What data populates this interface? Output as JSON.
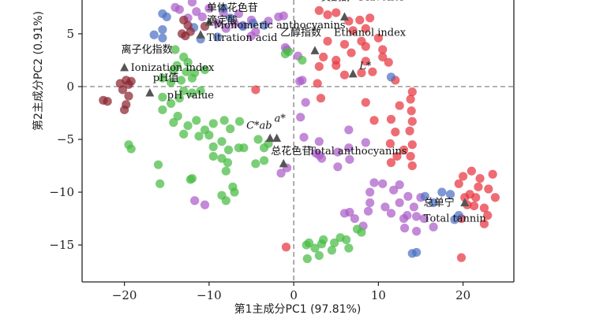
{
  "chart_data": {
    "type": "scatter",
    "xlabel": "第1主成分PC1 (97.81%)",
    "ylabel": "第2主成分PC2 (0.91%)",
    "xlim": [
      -25,
      26
    ],
    "ylim": [
      -18.5,
      8.2
    ],
    "x_ticks": [
      -20,
      -10,
      0,
      10,
      20
    ],
    "y_ticks": [
      5,
      0,
      -5,
      -10,
      -15
    ],
    "reference_lines": {
      "x": 0,
      "y": 0,
      "style": "dashed"
    },
    "series": [
      {
        "color": "#e8343e",
        "points": [
          [
            3,
            7.2
          ],
          [
            5,
            7
          ],
          [
            6.5,
            6.2
          ],
          [
            4,
            6.8
          ],
          [
            7.8,
            6.3
          ],
          [
            9,
            6.5
          ],
          [
            8.5,
            5.5
          ],
          [
            7,
            5.3
          ],
          [
            8,
            4.3
          ],
          [
            6,
            4
          ],
          [
            8.5,
            3.8
          ],
          [
            10,
            4.6
          ],
          [
            10.5,
            3.5
          ],
          [
            4,
            4.3
          ],
          [
            3.5,
            2.8
          ],
          [
            5,
            2.5
          ],
          [
            6.8,
            3.2
          ],
          [
            8.5,
            2.4
          ],
          [
            10.5,
            2.8
          ],
          [
            11.2,
            2.3
          ],
          [
            3,
            1.9
          ],
          [
            5,
            2
          ],
          [
            6,
            1.1
          ],
          [
            8,
            1.3
          ],
          [
            9.3,
            1.4
          ],
          [
            12,
            0.6
          ],
          [
            2.8,
            0.3
          ],
          [
            3.2,
            -1.1
          ],
          [
            14,
            -0.5
          ],
          [
            13.8,
            -1.2
          ],
          [
            12.5,
            -1.8
          ],
          [
            8.5,
            -1.5
          ],
          [
            13.9,
            -2.3
          ],
          [
            14,
            -3.3
          ],
          [
            13.7,
            -4.2
          ],
          [
            11.5,
            -3.1
          ],
          [
            12,
            -4.3
          ],
          [
            14,
            -5.5
          ],
          [
            13,
            -6
          ],
          [
            12.2,
            -6.6
          ],
          [
            11.4,
            -5.4
          ],
          [
            11.5,
            -7.2
          ],
          [
            13.8,
            -6.6
          ],
          [
            14,
            -7.5
          ],
          [
            9.5,
            -3.2
          ],
          [
            21,
            -8
          ],
          [
            20,
            -8.5
          ],
          [
            22,
            -8.7
          ],
          [
            23.5,
            -8.3
          ],
          [
            19.5,
            -9.2
          ],
          [
            21.8,
            -9.5
          ],
          [
            23,
            -9.7
          ],
          [
            21.5,
            -10.5
          ],
          [
            20.5,
            -11.2
          ],
          [
            22.5,
            -11.5
          ],
          [
            23.8,
            -10.5
          ],
          [
            20.8,
            -10.2
          ],
          [
            22.9,
            -12.2
          ],
          [
            22.5,
            -13
          ],
          [
            19.8,
            -12.5
          ],
          [
            20.2,
            -10.5
          ],
          [
            -4.5,
            -0.3
          ],
          [
            -0.9,
            -15.2
          ],
          [
            19.8,
            -16.2
          ],
          [
            21.3,
            -11.3
          ]
        ]
      },
      {
        "color": "#ab5dc7",
        "points": [
          [
            -12,
            8
          ],
          [
            -14,
            7.5
          ],
          [
            -13.5,
            7.3
          ],
          [
            -10,
            7.4
          ],
          [
            -11.5,
            7.1
          ],
          [
            -10.8,
            6.6
          ],
          [
            -12.5,
            6.5
          ],
          [
            -8.3,
            7
          ],
          [
            -9,
            6
          ],
          [
            -7,
            6
          ],
          [
            -6,
            5.8
          ],
          [
            -5,
            6.3
          ],
          [
            -3,
            6.2
          ],
          [
            -1.2,
            6.7
          ],
          [
            -1.8,
            6.6
          ],
          [
            -6.5,
            6.9
          ],
          [
            -4.5,
            5.2
          ],
          [
            -8,
            5.5
          ],
          [
            -5,
            4.8
          ],
          [
            -1,
            3.7
          ],
          [
            -0.8,
            3.5
          ],
          [
            0.5,
            2.9
          ],
          [
            0.7,
            0.5
          ],
          [
            1,
            0.6
          ],
          [
            1.4,
            -1.5
          ],
          [
            0.8,
            -2.9
          ],
          [
            1.2,
            -4.8
          ],
          [
            3,
            -5.2
          ],
          [
            2.6,
            -6.3
          ],
          [
            3.3,
            -6.8
          ],
          [
            5.2,
            -6.2
          ],
          [
            6.5,
            -5.8
          ],
          [
            8.5,
            -5.3
          ],
          [
            6.6,
            -6.9
          ],
          [
            5.2,
            -7.6
          ],
          [
            3,
            -6.5
          ],
          [
            6.5,
            -4.1
          ],
          [
            -0.8,
            -7.7
          ],
          [
            -1.5,
            -8.2
          ],
          [
            9.5,
            -9.1
          ],
          [
            10.5,
            -9.2
          ],
          [
            11.8,
            -9.8
          ],
          [
            12.5,
            -9.3
          ],
          [
            13.5,
            -10.4
          ],
          [
            12.5,
            -11
          ],
          [
            14.2,
            -11.4
          ],
          [
            9,
            -10
          ],
          [
            8.8,
            -11.8
          ],
          [
            8.2,
            -13.2
          ],
          [
            7.2,
            -12.5
          ],
          [
            6.6,
            -11.9
          ],
          [
            6,
            -12
          ],
          [
            11.5,
            -12
          ],
          [
            13,
            -12.5
          ],
          [
            14.5,
            -12.3
          ],
          [
            15.4,
            -12.5
          ],
          [
            13.1,
            -13.4
          ],
          [
            14.5,
            -13.7
          ],
          [
            15,
            -10.5
          ],
          [
            -10.5,
            -11.2
          ],
          [
            -11.7,
            -10.8
          ],
          [
            9,
            -11
          ],
          [
            10.8,
            -11.4
          ],
          [
            13.4,
            -12.2
          ],
          [
            16.5,
            -13.3
          ]
        ]
      },
      {
        "color": "#4c70c4",
        "points": [
          [
            -15.5,
            6.9
          ],
          [
            -15,
            6.6
          ],
          [
            -8.3,
            7.4
          ],
          [
            -7.5,
            6.5
          ],
          [
            -6,
            5.7
          ],
          [
            -4.8,
            6
          ],
          [
            -3.5,
            5.8
          ],
          [
            -11.8,
            5.6
          ],
          [
            -15.5,
            5.4
          ],
          [
            -15.5,
            4.6
          ],
          [
            -16.5,
            4.9
          ],
          [
            -11,
            4.5
          ],
          [
            -9,
            4.7
          ],
          [
            11.5,
            0.9
          ],
          [
            15.5,
            -10.4
          ],
          [
            16.5,
            -11
          ],
          [
            17.5,
            -10
          ],
          [
            18.5,
            -10.2
          ],
          [
            19,
            -12.6
          ],
          [
            19.5,
            -12.2
          ],
          [
            14,
            -15.8
          ],
          [
            14.5,
            -15.7
          ]
        ]
      },
      {
        "color": "#48bb44",
        "points": [
          [
            -14,
            3.5
          ],
          [
            -13,
            2.8
          ],
          [
            -12.5,
            2.3
          ],
          [
            -13.8,
            2
          ],
          [
            -12.7,
            1.4
          ],
          [
            -11.7,
            1.3
          ],
          [
            -10.5,
            1.6
          ],
          [
            -14.2,
            1.5
          ],
          [
            -15.5,
            0.8
          ],
          [
            -14.5,
            0.4
          ],
          [
            -13.3,
            0.6
          ],
          [
            -12,
            0.8
          ],
          [
            -13,
            -0.4
          ],
          [
            -12,
            -0.6
          ],
          [
            -11,
            -0.4
          ],
          [
            -15.5,
            -1
          ],
          [
            -14.5,
            -1.6
          ],
          [
            -13.5,
            -1.1
          ],
          [
            -15.5,
            -2.2
          ],
          [
            -13.7,
            -2.8
          ],
          [
            -14.2,
            -3.4
          ],
          [
            -11.5,
            -3.2
          ],
          [
            -12.5,
            -3.7
          ],
          [
            -9.5,
            -3.5
          ],
          [
            -10.5,
            -4.1
          ],
          [
            -8.2,
            -3.2
          ],
          [
            -7.5,
            -4
          ],
          [
            -6.4,
            -3.3
          ],
          [
            -11.2,
            -4.7
          ],
          [
            -10,
            -4.6
          ],
          [
            -9.5,
            -5.7
          ],
          [
            -8.5,
            -5.2
          ],
          [
            -9.5,
            -6.6
          ],
          [
            -7.8,
            -7.2
          ],
          [
            -8.5,
            -6.8
          ],
          [
            -7.7,
            -6
          ],
          [
            -6.5,
            -5.8
          ],
          [
            -8,
            -8
          ],
          [
            -7.2,
            -9.5
          ],
          [
            -7,
            -10
          ],
          [
            -12,
            -8.7
          ],
          [
            -12.2,
            -8.8
          ],
          [
            -16,
            -7.4
          ],
          [
            -13,
            -4.5
          ],
          [
            -19.5,
            -5.5
          ],
          [
            -19.2,
            -5.9
          ],
          [
            -15.8,
            -9.2
          ],
          [
            -8.5,
            -10.3
          ],
          [
            -8,
            -10.8
          ],
          [
            -5.9,
            -5.8
          ],
          [
            -3.5,
            -5.8
          ],
          [
            -3,
            -5.4
          ],
          [
            -4.5,
            -7.3
          ],
          [
            -3.5,
            -7
          ],
          [
            -1,
            3.1
          ],
          [
            -0.6,
            3.3
          ],
          [
            1,
            2.5
          ],
          [
            1.8,
            -14.8
          ],
          [
            2.5,
            -15.3
          ],
          [
            3.3,
            -14.9
          ],
          [
            1.6,
            -16.3
          ],
          [
            4.5,
            -15.5
          ],
          [
            6.2,
            -14.5
          ],
          [
            5.5,
            -14.3
          ],
          [
            8,
            -13.8
          ],
          [
            3,
            -16
          ],
          [
            6.5,
            -15.3
          ],
          [
            4.8,
            -14.8
          ],
          [
            7.5,
            -13.5
          ],
          [
            3.5,
            -14.5
          ],
          [
            -4.2,
            -5
          ],
          [
            1.5,
            -15
          ]
        ]
      },
      {
        "color": "#8a2631",
        "points": [
          [
            -13,
            6.3
          ],
          [
            -12.5,
            5.8
          ],
          [
            -13.2,
            5
          ],
          [
            -12.2,
            5.2
          ],
          [
            -10.5,
            5.7
          ],
          [
            -12.8,
            4.8
          ],
          [
            -20.5,
            0.3
          ],
          [
            -19.8,
            0.6
          ],
          [
            -19.5,
            0.2
          ],
          [
            -19.2,
            0.5
          ],
          [
            -20.2,
            -0.3
          ],
          [
            -19.5,
            -0.9
          ],
          [
            -19.8,
            -1.7
          ],
          [
            -22,
            -1.4
          ],
          [
            -22.5,
            -1.3
          ],
          [
            -20,
            -2.2
          ]
        ]
      }
    ],
    "variables": [
      {
        "cn": "黄酮醇",
        "en": "Flavonol",
        "x": 6,
        "y": 6.6
      },
      {
        "cn": "单体花色苷",
        "en": "Monomeric anthocyanins",
        "x": -10,
        "y": 6.1
      },
      {
        "cn": "滴定酸",
        "en": "Titration acid",
        "x": -11,
        "y": 4.9
      },
      {
        "cn": "乙醇指数",
        "en": "Ethanol index",
        "x": 2.5,
        "y": 3.4
      },
      {
        "cn": "离子化指数",
        "en": "Ionization index",
        "x": -20,
        "y": 1.8
      },
      {
        "label": "L*",
        "x": 7,
        "y": 1.2
      },
      {
        "cn": "pH值",
        "en": "pH value",
        "x": -17,
        "y": -0.6
      },
      {
        "label": "C*ab",
        "x": -2.8,
        "y": -4.9
      },
      {
        "label": "a*",
        "x": -2,
        "y": -4.9
      },
      {
        "cn": "总花色苷",
        "en": "Total anthocyanins",
        "x": -1.2,
        "y": -7.3
      },
      {
        "cn": "总单宁",
        "en": "Total tannin",
        "x": 20.2,
        "y": -11
      }
    ]
  }
}
